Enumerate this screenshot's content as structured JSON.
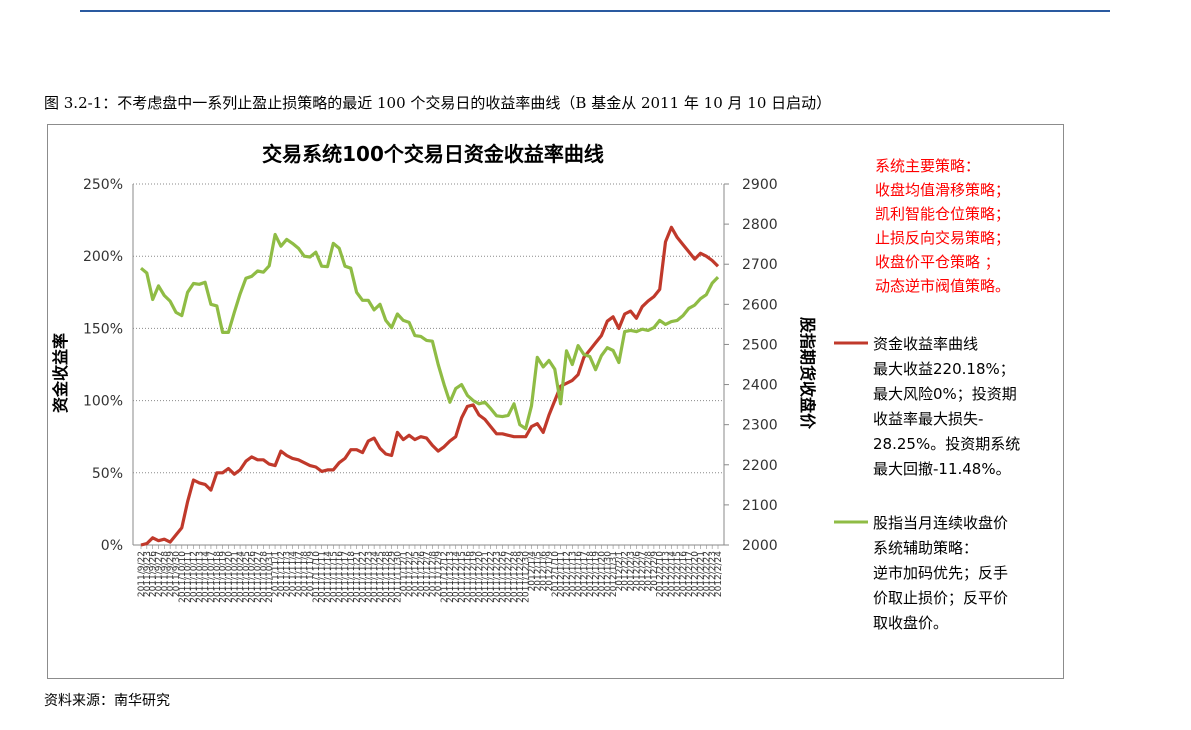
{
  "figure_caption": "图 3.2-1：不考虑盘中一系列止盈止损策略的最近 100 个交易日的收益率曲线（B 基金从 2011 年 10 月 10 日启动）",
  "source": "资料来源：南华研究",
  "annotations": {
    "strategy_text": [
      "系统主要策略：",
      "收盘均值滑移策略；",
      "凯利智能仓位策略；",
      "止损反向交易策略；",
      "收盘价平仓策略 ；",
      "动态逆市阀值策略。"
    ],
    "series1_text": [
      "资金收益率曲线",
      "最大收益220.18%；",
      "最大风险0%；投资期",
      "收益率最大损失-",
      "28.25%。投资期系统",
      "最大回撤-11.48%。"
    ],
    "series2_text": [
      "股指当月连续收盘价",
      "系统辅助策略：",
      "逆市加码优先；反手",
      "价取止损价；反平价",
      "取收盘价。"
    ]
  },
  "colors": {
    "returns": "#c0392b",
    "index": "#8fbc45",
    "annotation_red": "#ff0000",
    "header_rule": "#2a5aa0"
  },
  "chart_data": {
    "type": "line",
    "title": "交易系统100个交易日资金收益率曲线",
    "ylabel": "资金收益率",
    "y2label": "股指期货收盘价",
    "ylim": [
      0,
      250
    ],
    "y2lim": [
      2000,
      2900
    ],
    "yticks": [
      "0%",
      "50%",
      "100%",
      "150%",
      "200%",
      "250%"
    ],
    "y2ticks": [
      "2000",
      "2100",
      "2200",
      "2300",
      "2400",
      "2500",
      "2600",
      "2700",
      "2800",
      "2900"
    ],
    "grid": "horizontal-dotted",
    "x": [
      "2011/9/22",
      "2011/9/23",
      "2011/9/26",
      "2011/9/27",
      "2011/9/28",
      "2011/9/29",
      "2011/9/30",
      "2011/10/10",
      "2011/10/11",
      "2011/10/12",
      "2011/10/13",
      "2011/10/14",
      "2011/10/17",
      "2011/10/18",
      "2011/10/19",
      "2011/10/20",
      "2011/10/21",
      "2011/10/24",
      "2011/10/25",
      "2011/10/26",
      "2011/10/27",
      "2011/10/28",
      "2011/10/31",
      "2011/11/1",
      "2011/11/2",
      "2011/11/3",
      "2011/11/4",
      "2011/11/7",
      "2011/11/8",
      "2011/11/9",
      "2011/11/10",
      "2011/11/11",
      "2011/11/14",
      "2011/11/15",
      "2011/11/16",
      "2011/11/17",
      "2011/11/18",
      "2011/11/21",
      "2011/11/22",
      "2011/11/23",
      "2011/11/24",
      "2011/11/25",
      "2011/11/28",
      "2011/11/29",
      "2011/11/30",
      "2011/12/1",
      "2011/12/2",
      "2011/12/5",
      "2011/12/6",
      "2011/12/7",
      "2011/12/8",
      "2011/12/9",
      "2011/12/12",
      "2011/12/13",
      "2011/12/14",
      "2011/12/15",
      "2011/12/16",
      "2011/12/19",
      "2011/12/20",
      "2011/12/21",
      "2011/12/22",
      "2011/12/23",
      "2011/12/26",
      "2011/12/27",
      "2011/12/28",
      "2011/12/29",
      "2011/12/30",
      "2012/1/4",
      "2012/1/5",
      "2012/1/6",
      "2012/1/9",
      "2012/1/10",
      "2012/1/11",
      "2012/1/12",
      "2012/1/13",
      "2012/1/16",
      "2012/1/17",
      "2012/1/18",
      "2012/1/19",
      "2012/1/20",
      "2012/1/30",
      "2012/1/31",
      "2012/2/1",
      "2012/2/2",
      "2012/2/3",
      "2012/2/6",
      "2012/2/7",
      "2012/2/8",
      "2012/2/9",
      "2012/2/10",
      "2012/2/13",
      "2012/2/14",
      "2012/2/15",
      "2012/2/16",
      "2012/2/17",
      "2012/2/20",
      "2012/2/21",
      "2012/2/22",
      "2012/2/23",
      "2012/2/24"
    ],
    "series": [
      {
        "name": "资金收益率曲线",
        "axis": "left",
        "values": [
          0,
          1,
          5,
          3,
          4,
          2,
          7,
          12,
          30,
          45,
          43,
          42,
          38,
          50,
          50,
          53,
          49,
          52,
          58,
          61,
          59,
          59,
          56,
          55,
          65,
          62,
          60,
          59,
          57,
          55,
          54,
          51,
          52,
          52,
          57,
          60,
          66,
          66,
          64,
          72,
          74,
          67,
          63,
          62,
          78,
          73,
          76,
          73,
          75,
          74,
          69,
          65,
          68,
          72,
          75,
          88,
          96,
          97,
          90,
          87,
          82,
          77,
          77,
          76,
          75,
          75,
          75,
          82,
          84,
          78,
          90,
          100,
          110,
          112,
          114,
          118,
          130,
          135,
          140,
          145,
          155,
          158,
          150,
          160,
          162,
          157,
          165,
          169,
          172,
          177,
          210,
          220,
          213,
          208,
          203,
          198,
          202,
          200,
          197,
          193
        ]
      },
      {
        "name": "股指当月连续收盘价",
        "axis": "right",
        "values": [
          2690,
          2678,
          2612,
          2646,
          2622,
          2608,
          2580,
          2572,
          2630,
          2652,
          2650,
          2655,
          2600,
          2596,
          2530,
          2530,
          2580,
          2626,
          2665,
          2670,
          2683,
          2680,
          2696,
          2774,
          2745,
          2762,
          2752,
          2740,
          2720,
          2718,
          2730,
          2695,
          2694,
          2752,
          2740,
          2695,
          2690,
          2630,
          2610,
          2610,
          2586,
          2600,
          2560,
          2542,
          2576,
          2560,
          2555,
          2522,
          2520,
          2510,
          2508,
          2450,
          2400,
          2356,
          2390,
          2400,
          2373,
          2360,
          2352,
          2356,
          2340,
          2322,
          2320,
          2323,
          2352,
          2300,
          2290,
          2347,
          2468,
          2444,
          2460,
          2438,
          2352,
          2484,
          2450,
          2497,
          2475,
          2470,
          2437,
          2472,
          2492,
          2485,
          2455,
          2532,
          2535,
          2532,
          2538,
          2535,
          2542,
          2560,
          2550,
          2557,
          2560,
          2572,
          2590,
          2598,
          2614,
          2624,
          2653,
          2668
        ]
      }
    ]
  }
}
